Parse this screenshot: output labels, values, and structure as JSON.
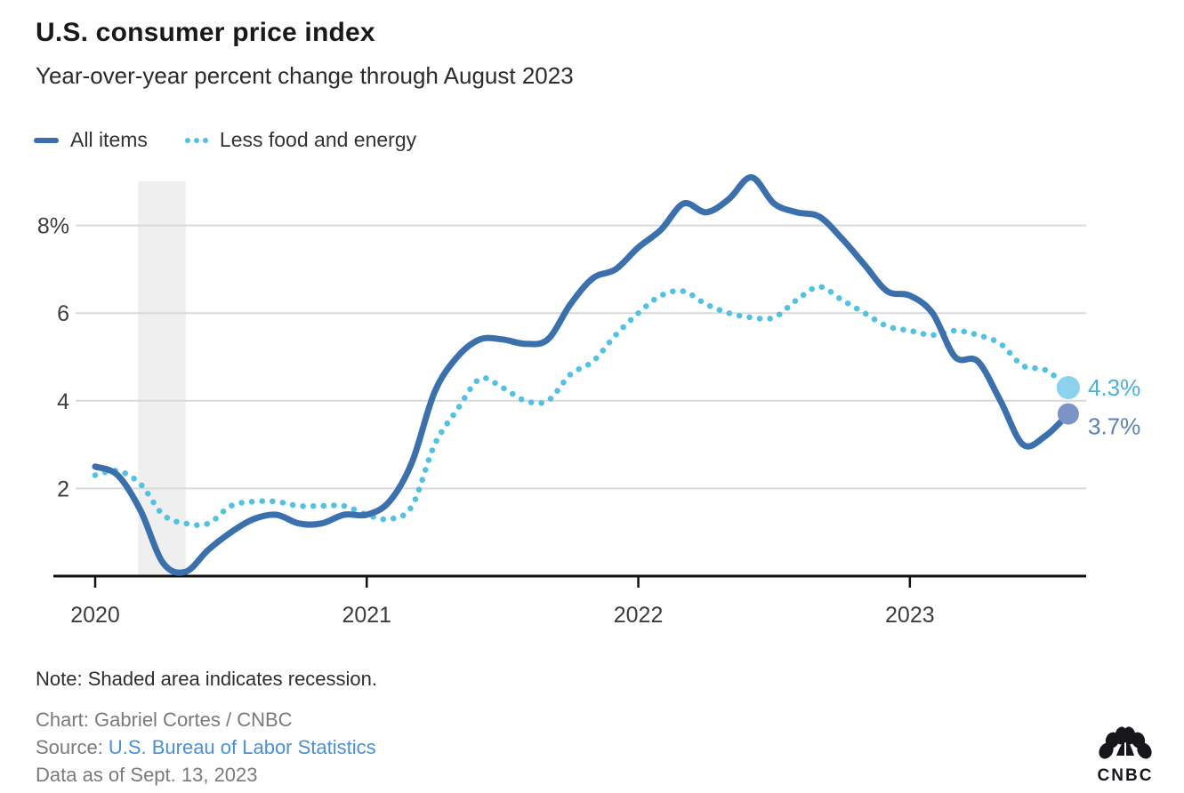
{
  "colors": {
    "all_items_line": "#3a70ad",
    "core_line": "#50c2e3",
    "all_items_end_dot": "#7b93c6",
    "core_end_dot": "#8bd2ec",
    "all_items_end_label": "#5c80b8",
    "core_end_label": "#49b0d8",
    "recession_band": "#efefef",
    "gridline": "#d9d9d9",
    "axis": "#111111",
    "tick_label": "#3d3d3d",
    "source_link": "#4a90d6"
  },
  "chart_data": {
    "type": "line",
    "title": "U.S. consumer price index",
    "subtitle": "Year-over-year percent change through August 2023",
    "xlabel": "",
    "ylabel": "",
    "ylim": [
      0,
      9
    ],
    "grid": true,
    "legend_position": "top",
    "x": [
      "2020-01",
      "2020-02",
      "2020-03",
      "2020-04",
      "2020-05",
      "2020-06",
      "2020-07",
      "2020-08",
      "2020-09",
      "2020-10",
      "2020-11",
      "2020-12",
      "2021-01",
      "2021-02",
      "2021-03",
      "2021-04",
      "2021-05",
      "2021-06",
      "2021-07",
      "2021-08",
      "2021-09",
      "2021-10",
      "2021-11",
      "2021-12",
      "2022-01",
      "2022-02",
      "2022-03",
      "2022-04",
      "2022-05",
      "2022-06",
      "2022-07",
      "2022-08",
      "2022-09",
      "2022-10",
      "2022-11",
      "2022-12",
      "2023-01",
      "2023-02",
      "2023-03",
      "2023-04",
      "2023-05",
      "2023-06",
      "2023-07",
      "2023-08"
    ],
    "series": [
      {
        "id": "all-items",
        "name": "All items",
        "style": "solid",
        "color": "#3a70ad",
        "end_dot_color": "#7b93c6",
        "end_label": "3.7%",
        "end_label_color": "#5c80b8",
        "values": [
          2.5,
          2.3,
          1.5,
          0.3,
          0.1,
          0.6,
          1.0,
          1.3,
          1.4,
          1.2,
          1.2,
          1.4,
          1.4,
          1.7,
          2.6,
          4.2,
          5.0,
          5.4,
          5.4,
          5.3,
          5.4,
          6.2,
          6.8,
          7.0,
          7.5,
          7.9,
          8.5,
          8.3,
          8.6,
          9.1,
          8.5,
          8.3,
          8.2,
          7.7,
          7.1,
          6.5,
          6.4,
          6.0,
          5.0,
          4.9,
          4.0,
          3.0,
          3.2,
          3.7
        ]
      },
      {
        "id": "less-food-and-energy",
        "name": "Less food and energy",
        "style": "dotted",
        "color": "#50c2e3",
        "end_dot_color": "#8bd2ec",
        "end_label": "4.3%",
        "end_label_color": "#49b0d8",
        "values": [
          2.3,
          2.4,
          2.1,
          1.4,
          1.2,
          1.2,
          1.6,
          1.7,
          1.7,
          1.6,
          1.6,
          1.6,
          1.4,
          1.3,
          1.6,
          3.0,
          3.8,
          4.5,
          4.3,
          4.0,
          4.0,
          4.6,
          4.9,
          5.5,
          6.0,
          6.4,
          6.5,
          6.2,
          6.0,
          5.9,
          5.9,
          6.3,
          6.6,
          6.3,
          6.0,
          5.7,
          5.6,
          5.5,
          5.6,
          5.5,
          5.3,
          4.8,
          4.7,
          4.3
        ]
      }
    ],
    "y_ticks": [
      {
        "value": 8,
        "label": "8%"
      },
      {
        "value": 6,
        "label": "6"
      },
      {
        "value": 4,
        "label": "4"
      },
      {
        "value": 2,
        "label": "2"
      }
    ],
    "x_ticks": [
      {
        "month_index": 0,
        "label": "2020"
      },
      {
        "month_index": 12,
        "label": "2021"
      },
      {
        "month_index": 24,
        "label": "2022"
      },
      {
        "month_index": 36,
        "label": "2023"
      }
    ],
    "recession_band": {
      "start_month_index": 1.9,
      "end_month_index": 4.0
    }
  },
  "footer": {
    "note": "Note: Shaded area indicates recession.",
    "credit": "Chart: Gabriel Cortes / CNBC",
    "source_prefix": "Source:",
    "source_link": "U.S. Bureau of Labor Statistics",
    "data_as_of": "Data as of Sept. 13, 2023"
  },
  "logo": {
    "wordmark": "CNBC"
  }
}
